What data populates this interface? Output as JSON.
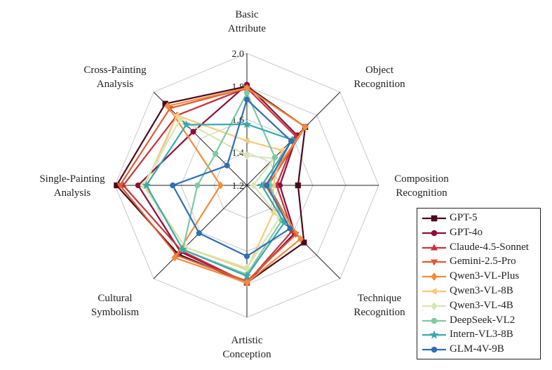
{
  "chart_data": {
    "type": "radar",
    "axes": [
      [
        "Basic",
        "Attribute"
      ],
      [
        "Object",
        "Recognition"
      ],
      [
        "Composition",
        "Recognition"
      ],
      [
        "Technique",
        "Recognition"
      ],
      [
        "Artistic",
        "Conception"
      ],
      [
        "Cultural",
        "Symbolism"
      ],
      [
        "Single-Painting",
        "Analysis"
      ],
      [
        "Cross-Painting",
        "Analysis"
      ]
    ],
    "rlim": [
      1.2,
      2.0
    ],
    "ticks": [
      1.2,
      1.4,
      1.6,
      1.8,
      2.0
    ],
    "tick_labels": [
      "1.2",
      "1.4",
      "1.6",
      "1.8",
      "2.0"
    ],
    "legend_position": "bottom-right",
    "series": [
      {
        "name": "GPT-5",
        "color": "#4a0a1a",
        "marker": "square",
        "values": [
          1.8,
          1.7,
          1.51,
          1.69,
          1.79,
          1.79,
          1.99,
          1.9
        ]
      },
      {
        "name": "GPT-4o",
        "color": "#8b0f3a",
        "marker": "circle",
        "values": [
          1.81,
          1.63,
          1.4,
          1.61,
          1.79,
          1.77,
          1.86,
          1.66
        ]
      },
      {
        "name": "Claude-4.5-Sonnet",
        "color": "#c8323c",
        "marker": "triangle-up",
        "values": [
          1.79,
          1.62,
          1.38,
          1.59,
          1.79,
          1.76,
          1.95,
          1.8
        ]
      },
      {
        "name": "Gemini-2.5-Pro",
        "color": "#de5a36",
        "marker": "triangle-down",
        "values": [
          1.79,
          1.7,
          1.33,
          1.62,
          1.78,
          1.8,
          1.97,
          1.86
        ]
      },
      {
        "name": "Qwen3-VL-Plus",
        "color": "#f28c3c",
        "marker": "diamond",
        "values": [
          1.79,
          1.7,
          1.31,
          1.66,
          1.79,
          1.82,
          1.36,
          1.88
        ]
      },
      {
        "name": "Qwen3-VL-8B",
        "color": "#f7c97d",
        "marker": "triangle-left",
        "values": [
          1.47,
          1.5,
          1.36,
          1.43,
          1.71,
          1.73,
          1.82,
          1.8
        ]
      },
      {
        "name": "Qwen3-VL-4B",
        "color": "#d7e6b0",
        "marker": "diamond",
        "values": [
          1.38,
          1.43,
          1.24,
          1.48,
          1.7,
          1.73,
          1.83,
          1.77
        ]
      },
      {
        "name": "DeepSeek-VL2",
        "color": "#7ec8a5",
        "marker": "circle",
        "values": [
          1.76,
          1.44,
          1.34,
          1.5,
          1.74,
          1.75,
          1.5,
          1.47
        ]
      },
      {
        "name": "Intern-VL3-8B",
        "color": "#3aa8ad",
        "marker": "star",
        "values": [
          1.57,
          1.59,
          1.29,
          1.52,
          1.75,
          1.75,
          1.81,
          1.72
        ]
      },
      {
        "name": "GLM-4V-9B",
        "color": "#2f6fb2",
        "marker": "circle",
        "values": [
          1.72,
          1.58,
          1.32,
          1.57,
          1.63,
          1.61,
          1.65,
          1.37
        ]
      }
    ]
  }
}
